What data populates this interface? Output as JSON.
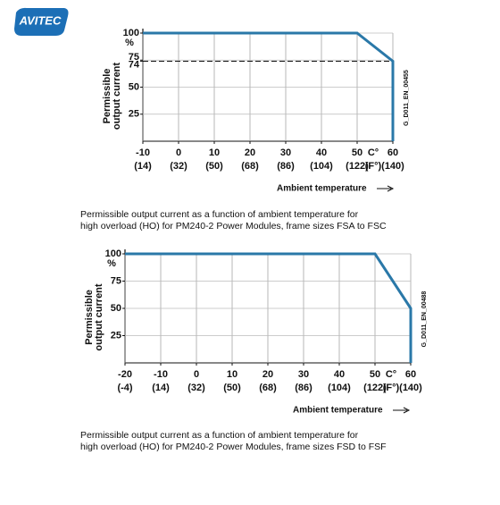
{
  "logo": "AVITEC",
  "chart_data": [
    {
      "type": "line",
      "y_label": [
        "Permissible",
        "output current"
      ],
      "y_unit": "%",
      "x_label": "Ambient temperature",
      "x_unit": "C°",
      "x2_unit": "(F°)",
      "code": "G_D011_EN_00455",
      "caption": [
        "Permissible output current as a function of ambient temperature for",
        "high overload (HO) for PM240-2 Power Modules, frame sizes FSA to FSC"
      ],
      "xlim": [
        -10,
        60
      ],
      "xticks": [
        -10,
        0,
        10,
        20,
        30,
        40,
        50,
        60
      ],
      "xticks_f": [
        "(14)",
        "(32)",
        "(50)",
        "(68)",
        "(86)",
        "(104)",
        "(122)",
        "(140)"
      ],
      "ylim": [
        0,
        100
      ],
      "yticks": [
        25,
        50,
        74,
        75,
        100
      ],
      "ref_line": 74,
      "grid": true,
      "series": [
        {
          "color": "#2a78a8",
          "x": [
            -10,
            50,
            60,
            60
          ],
          "values": [
            100,
            100,
            74,
            0
          ]
        }
      ]
    },
    {
      "type": "line",
      "y_label": [
        "Permissible",
        "output current"
      ],
      "y_unit": "%",
      "x_label": "Ambient temperature",
      "x_unit": "C°",
      "x2_unit": "(F°)",
      "code": "G_D011_EN_00488",
      "caption": [
        "Permissible output current as a function of ambient temperature for",
        "high overload (HO) for PM240-2 Power Modules, frame sizes FSD to FSF"
      ],
      "xlim": [
        -20,
        60
      ],
      "xticks": [
        -20,
        -10,
        0,
        10,
        20,
        30,
        40,
        50,
        60
      ],
      "xticks_f": [
        "(-4)",
        "(14)",
        "(32)",
        "(50)",
        "(68)",
        "(86)",
        "(104)",
        "(122)",
        "(140)"
      ],
      "ylim": [
        0,
        100
      ],
      "yticks": [
        25,
        50,
        75,
        100
      ],
      "grid": true,
      "series": [
        {
          "color": "#2a78a8",
          "x": [
            -20,
            50,
            60,
            60
          ],
          "values": [
            100,
            100,
            50,
            0
          ]
        }
      ]
    }
  ]
}
